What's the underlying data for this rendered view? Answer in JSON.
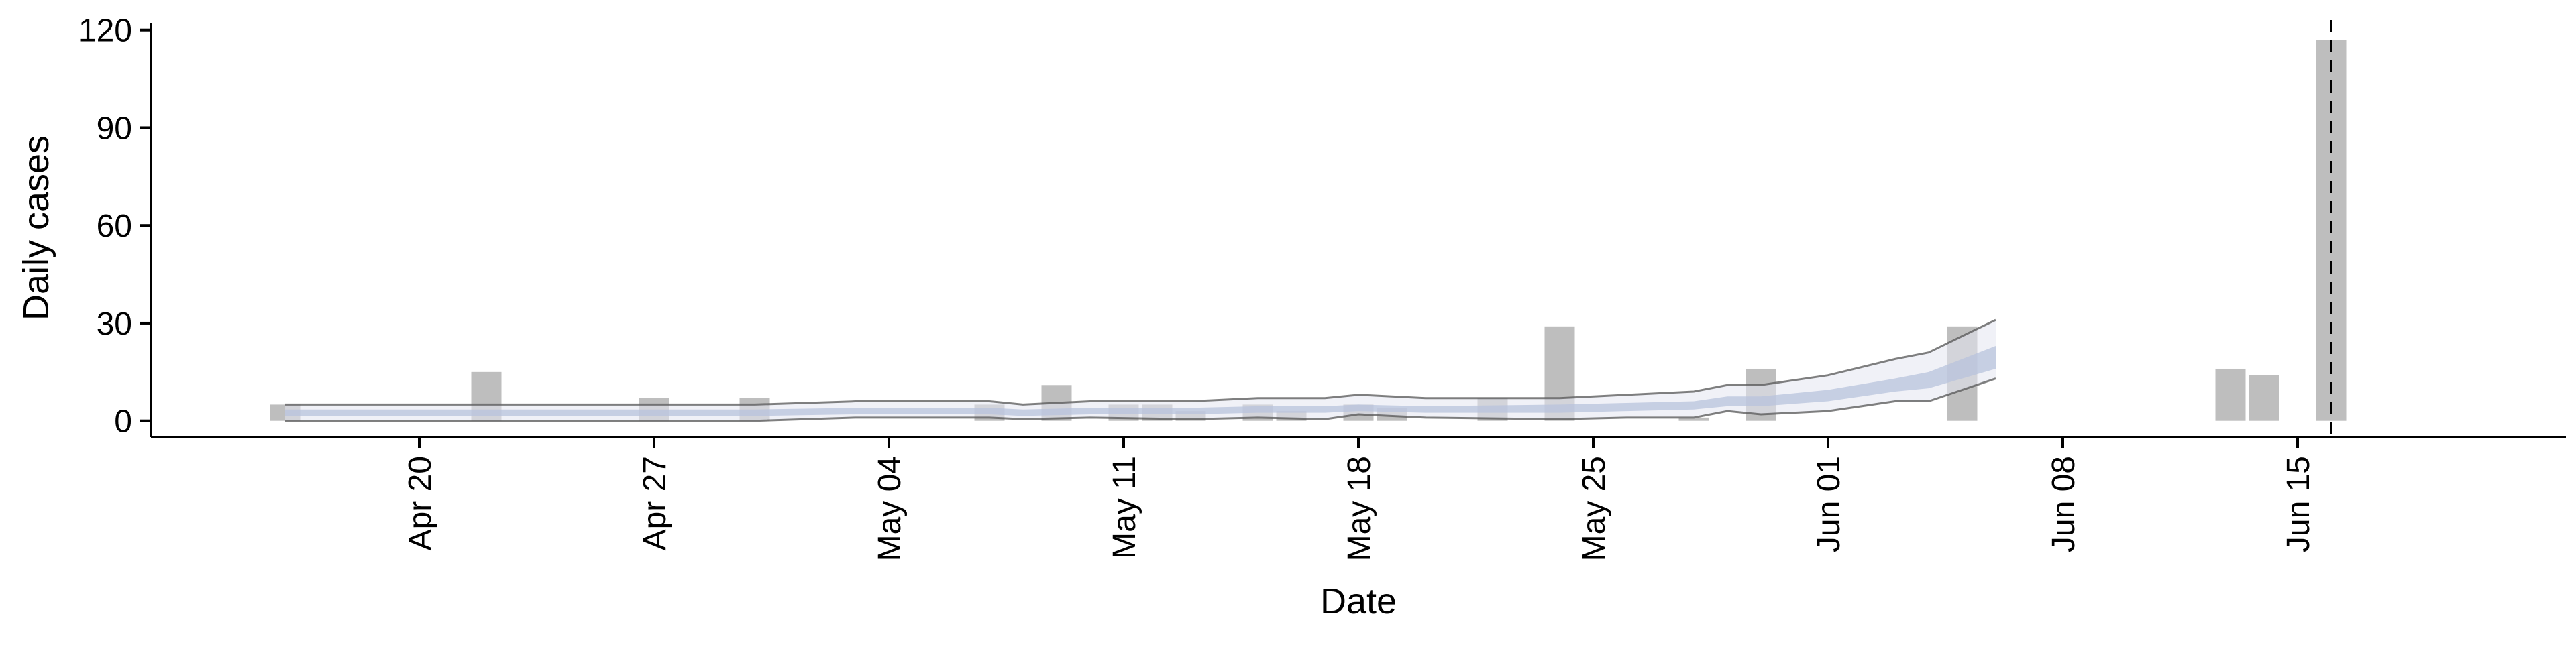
{
  "chart_data": {
    "type": "bar",
    "title": "",
    "xlabel": "Date",
    "ylabel": "Daily cases",
    "ylim": [
      -5,
      122
    ],
    "xlim": [
      "2020-04-12",
      "2020-06-23"
    ],
    "x_ticks": [
      {
        "date": "2020-04-20",
        "label": "Apr 20"
      },
      {
        "date": "2020-04-27",
        "label": "Apr 27"
      },
      {
        "date": "2020-05-04",
        "label": "May 04"
      },
      {
        "date": "2020-05-11",
        "label": "May 11"
      },
      {
        "date": "2020-05-18",
        "label": "May 18"
      },
      {
        "date": "2020-05-25",
        "label": "May 25"
      },
      {
        "date": "2020-06-01",
        "label": "Jun 01"
      },
      {
        "date": "2020-06-08",
        "label": "Jun 08"
      },
      {
        "date": "2020-06-15",
        "label": "Jun 15"
      }
    ],
    "y_ticks": [
      0,
      30,
      60,
      90,
      120
    ],
    "grid": false,
    "reference_line": {
      "date": "2020-06-16",
      "style": "dashed"
    },
    "colors": {
      "bar": "#bebebe",
      "band_outer": "#e3e6f0",
      "band_inner": "#b8c3dc",
      "bound_line": "#555555",
      "axis": "#000000"
    },
    "bars": [
      {
        "date": "2020-04-16",
        "value": 5
      },
      {
        "date": "2020-04-22",
        "value": 15
      },
      {
        "date": "2020-04-27",
        "value": 7
      },
      {
        "date": "2020-04-30",
        "value": 7
      },
      {
        "date": "2020-05-07",
        "value": 5
      },
      {
        "date": "2020-05-09",
        "value": 11
      },
      {
        "date": "2020-05-11",
        "value": 5
      },
      {
        "date": "2020-05-12",
        "value": 5
      },
      {
        "date": "2020-05-13",
        "value": 3
      },
      {
        "date": "2020-05-15",
        "value": 5
      },
      {
        "date": "2020-05-16",
        "value": 3
      },
      {
        "date": "2020-05-18",
        "value": 5
      },
      {
        "date": "2020-05-19",
        "value": 4
      },
      {
        "date": "2020-05-22",
        "value": 7
      },
      {
        "date": "2020-05-24",
        "value": 29
      },
      {
        "date": "2020-05-28",
        "value": 1
      },
      {
        "date": "2020-05-30",
        "value": 16
      },
      {
        "date": "2020-06-05",
        "value": 29
      },
      {
        "date": "2020-06-13",
        "value": 16
      },
      {
        "date": "2020-06-14",
        "value": 14
      },
      {
        "date": "2020-06-16",
        "value": 117
      }
    ],
    "estimate": [
      {
        "date": "2020-04-16",
        "lower": 0,
        "upper": 5,
        "inner_lower": 1.5,
        "inner_upper": 3.5
      },
      {
        "date": "2020-04-20",
        "lower": 0,
        "upper": 5,
        "inner_lower": 1.5,
        "inner_upper": 3.5
      },
      {
        "date": "2020-04-25",
        "lower": 0,
        "upper": 5,
        "inner_lower": 1.5,
        "inner_upper": 3.5
      },
      {
        "date": "2020-04-30",
        "lower": 0,
        "upper": 5,
        "inner_lower": 1.5,
        "inner_upper": 3.5
      },
      {
        "date": "2020-05-03",
        "lower": 1,
        "upper": 6,
        "inner_lower": 2,
        "inner_upper": 4
      },
      {
        "date": "2020-05-07",
        "lower": 1,
        "upper": 6,
        "inner_lower": 2,
        "inner_upper": 4
      },
      {
        "date": "2020-05-08",
        "lower": 0.5,
        "upper": 5,
        "inner_lower": 1.5,
        "inner_upper": 3.5
      },
      {
        "date": "2020-05-10",
        "lower": 1,
        "upper": 6,
        "inner_lower": 2,
        "inner_upper": 4
      },
      {
        "date": "2020-05-13",
        "lower": 0.5,
        "upper": 6,
        "inner_lower": 2,
        "inner_upper": 4
      },
      {
        "date": "2020-05-15",
        "lower": 1,
        "upper": 7,
        "inner_lower": 2.5,
        "inner_upper": 4.5
      },
      {
        "date": "2020-05-17",
        "lower": 0.5,
        "upper": 7,
        "inner_lower": 2.5,
        "inner_upper": 4.5
      },
      {
        "date": "2020-05-18",
        "lower": 2,
        "upper": 8,
        "inner_lower": 3,
        "inner_upper": 5
      },
      {
        "date": "2020-05-20",
        "lower": 1,
        "upper": 7,
        "inner_lower": 2.5,
        "inner_upper": 4.5
      },
      {
        "date": "2020-05-24",
        "lower": 0.5,
        "upper": 7,
        "inner_lower": 2.5,
        "inner_upper": 5
      },
      {
        "date": "2020-05-26",
        "lower": 1,
        "upper": 8,
        "inner_lower": 3,
        "inner_upper": 5.5
      },
      {
        "date": "2020-05-28",
        "lower": 1,
        "upper": 9,
        "inner_lower": 3.5,
        "inner_upper": 6
      },
      {
        "date": "2020-05-29",
        "lower": 3,
        "upper": 11,
        "inner_lower": 4.5,
        "inner_upper": 7.5
      },
      {
        "date": "2020-05-30",
        "lower": 2,
        "upper": 11,
        "inner_lower": 4.5,
        "inner_upper": 7.5
      },
      {
        "date": "2020-06-01",
        "lower": 3,
        "upper": 14,
        "inner_lower": 6,
        "inner_upper": 9.5
      },
      {
        "date": "2020-06-03",
        "lower": 6,
        "upper": 19,
        "inner_lower": 9,
        "inner_upper": 13
      },
      {
        "date": "2020-06-04",
        "lower": 6,
        "upper": 21,
        "inner_lower": 10,
        "inner_upper": 15
      },
      {
        "date": "2020-06-06",
        "lower": 13,
        "upper": 31,
        "inner_lower": 16,
        "inner_upper": 23
      }
    ]
  }
}
